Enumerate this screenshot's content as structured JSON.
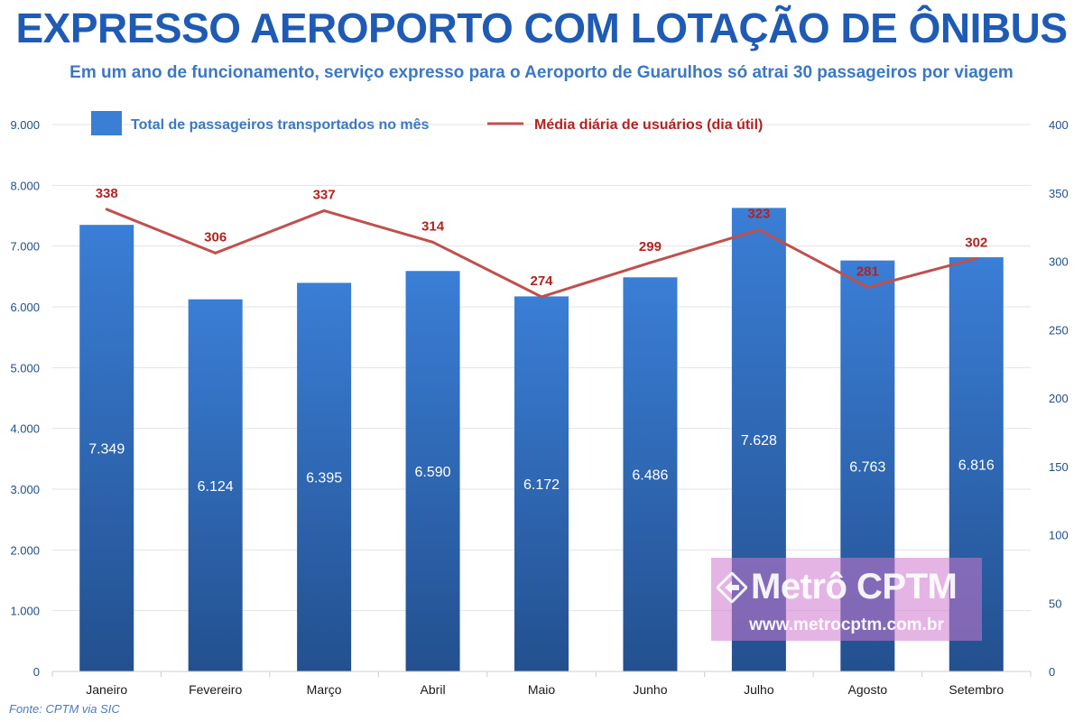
{
  "header": {
    "title": "EXPRESSO AEROPORTO COM LOTAÇÃO DE ÔNIBUS",
    "subtitle": "Em um ano de funcionamento, serviço expresso para o Aeroporto de Guarulhos só atrai 30 passageiros por viagem"
  },
  "footer": {
    "source": "Fonte: CPTM via SIC"
  },
  "watermark": {
    "name": "Metrô CPTM",
    "url": "www.metrocptm.com.br",
    "icon": "diamond-arrow-logo-icon"
  },
  "colors": {
    "title": "#1f5bb4",
    "subtitle": "#3b78c4",
    "bar_top": "#3a7ed6",
    "bar_bottom": "#23508f",
    "line": "#c0504d",
    "line_label": "#b3231f",
    "axis_text": "#1f4e8c"
  },
  "chart_data": {
    "type": "bar",
    "categories": [
      "Janeiro",
      "Fevereiro",
      "Março",
      "Abril",
      "Maio",
      "Junho",
      "Julho",
      "Agosto",
      "Setembro"
    ],
    "series": [
      {
        "name": "Total de passageiros transportados no mês",
        "type": "bar",
        "axis": "left",
        "values": [
          7349,
          6124,
          6395,
          6590,
          6172,
          6486,
          7628,
          6763,
          6816
        ],
        "labels": [
          "7.349",
          "6.124",
          "6.395",
          "6.590",
          "6.172",
          "6.486",
          "7.628",
          "6.763",
          "6.816"
        ]
      },
      {
        "name": "Média diária de usuários (dia útil)",
        "type": "line",
        "axis": "right",
        "values": [
          338,
          306,
          337,
          314,
          274,
          299,
          323,
          281,
          302
        ],
        "labels": [
          "338",
          "306",
          "337",
          "314",
          "274",
          "299",
          "323",
          "281",
          "302"
        ]
      }
    ],
    "y_left": {
      "min": 0,
      "max": 9000,
      "ticks": [
        0,
        1000,
        2000,
        3000,
        4000,
        5000,
        6000,
        7000,
        8000,
        9000
      ],
      "tick_labels": [
        "0",
        "1.000",
        "2.000",
        "3.000",
        "4.000",
        "5.000",
        "6.000",
        "7.000",
        "8.000",
        "9.000"
      ]
    },
    "y_right": {
      "min": 0,
      "max": 400,
      "ticks": [
        0,
        50,
        100,
        150,
        200,
        250,
        300,
        350,
        400
      ],
      "tick_labels": [
        "0",
        "50",
        "100",
        "150",
        "200",
        "250",
        "300",
        "350",
        "400"
      ]
    },
    "legend_position": "top",
    "grid": true
  }
}
